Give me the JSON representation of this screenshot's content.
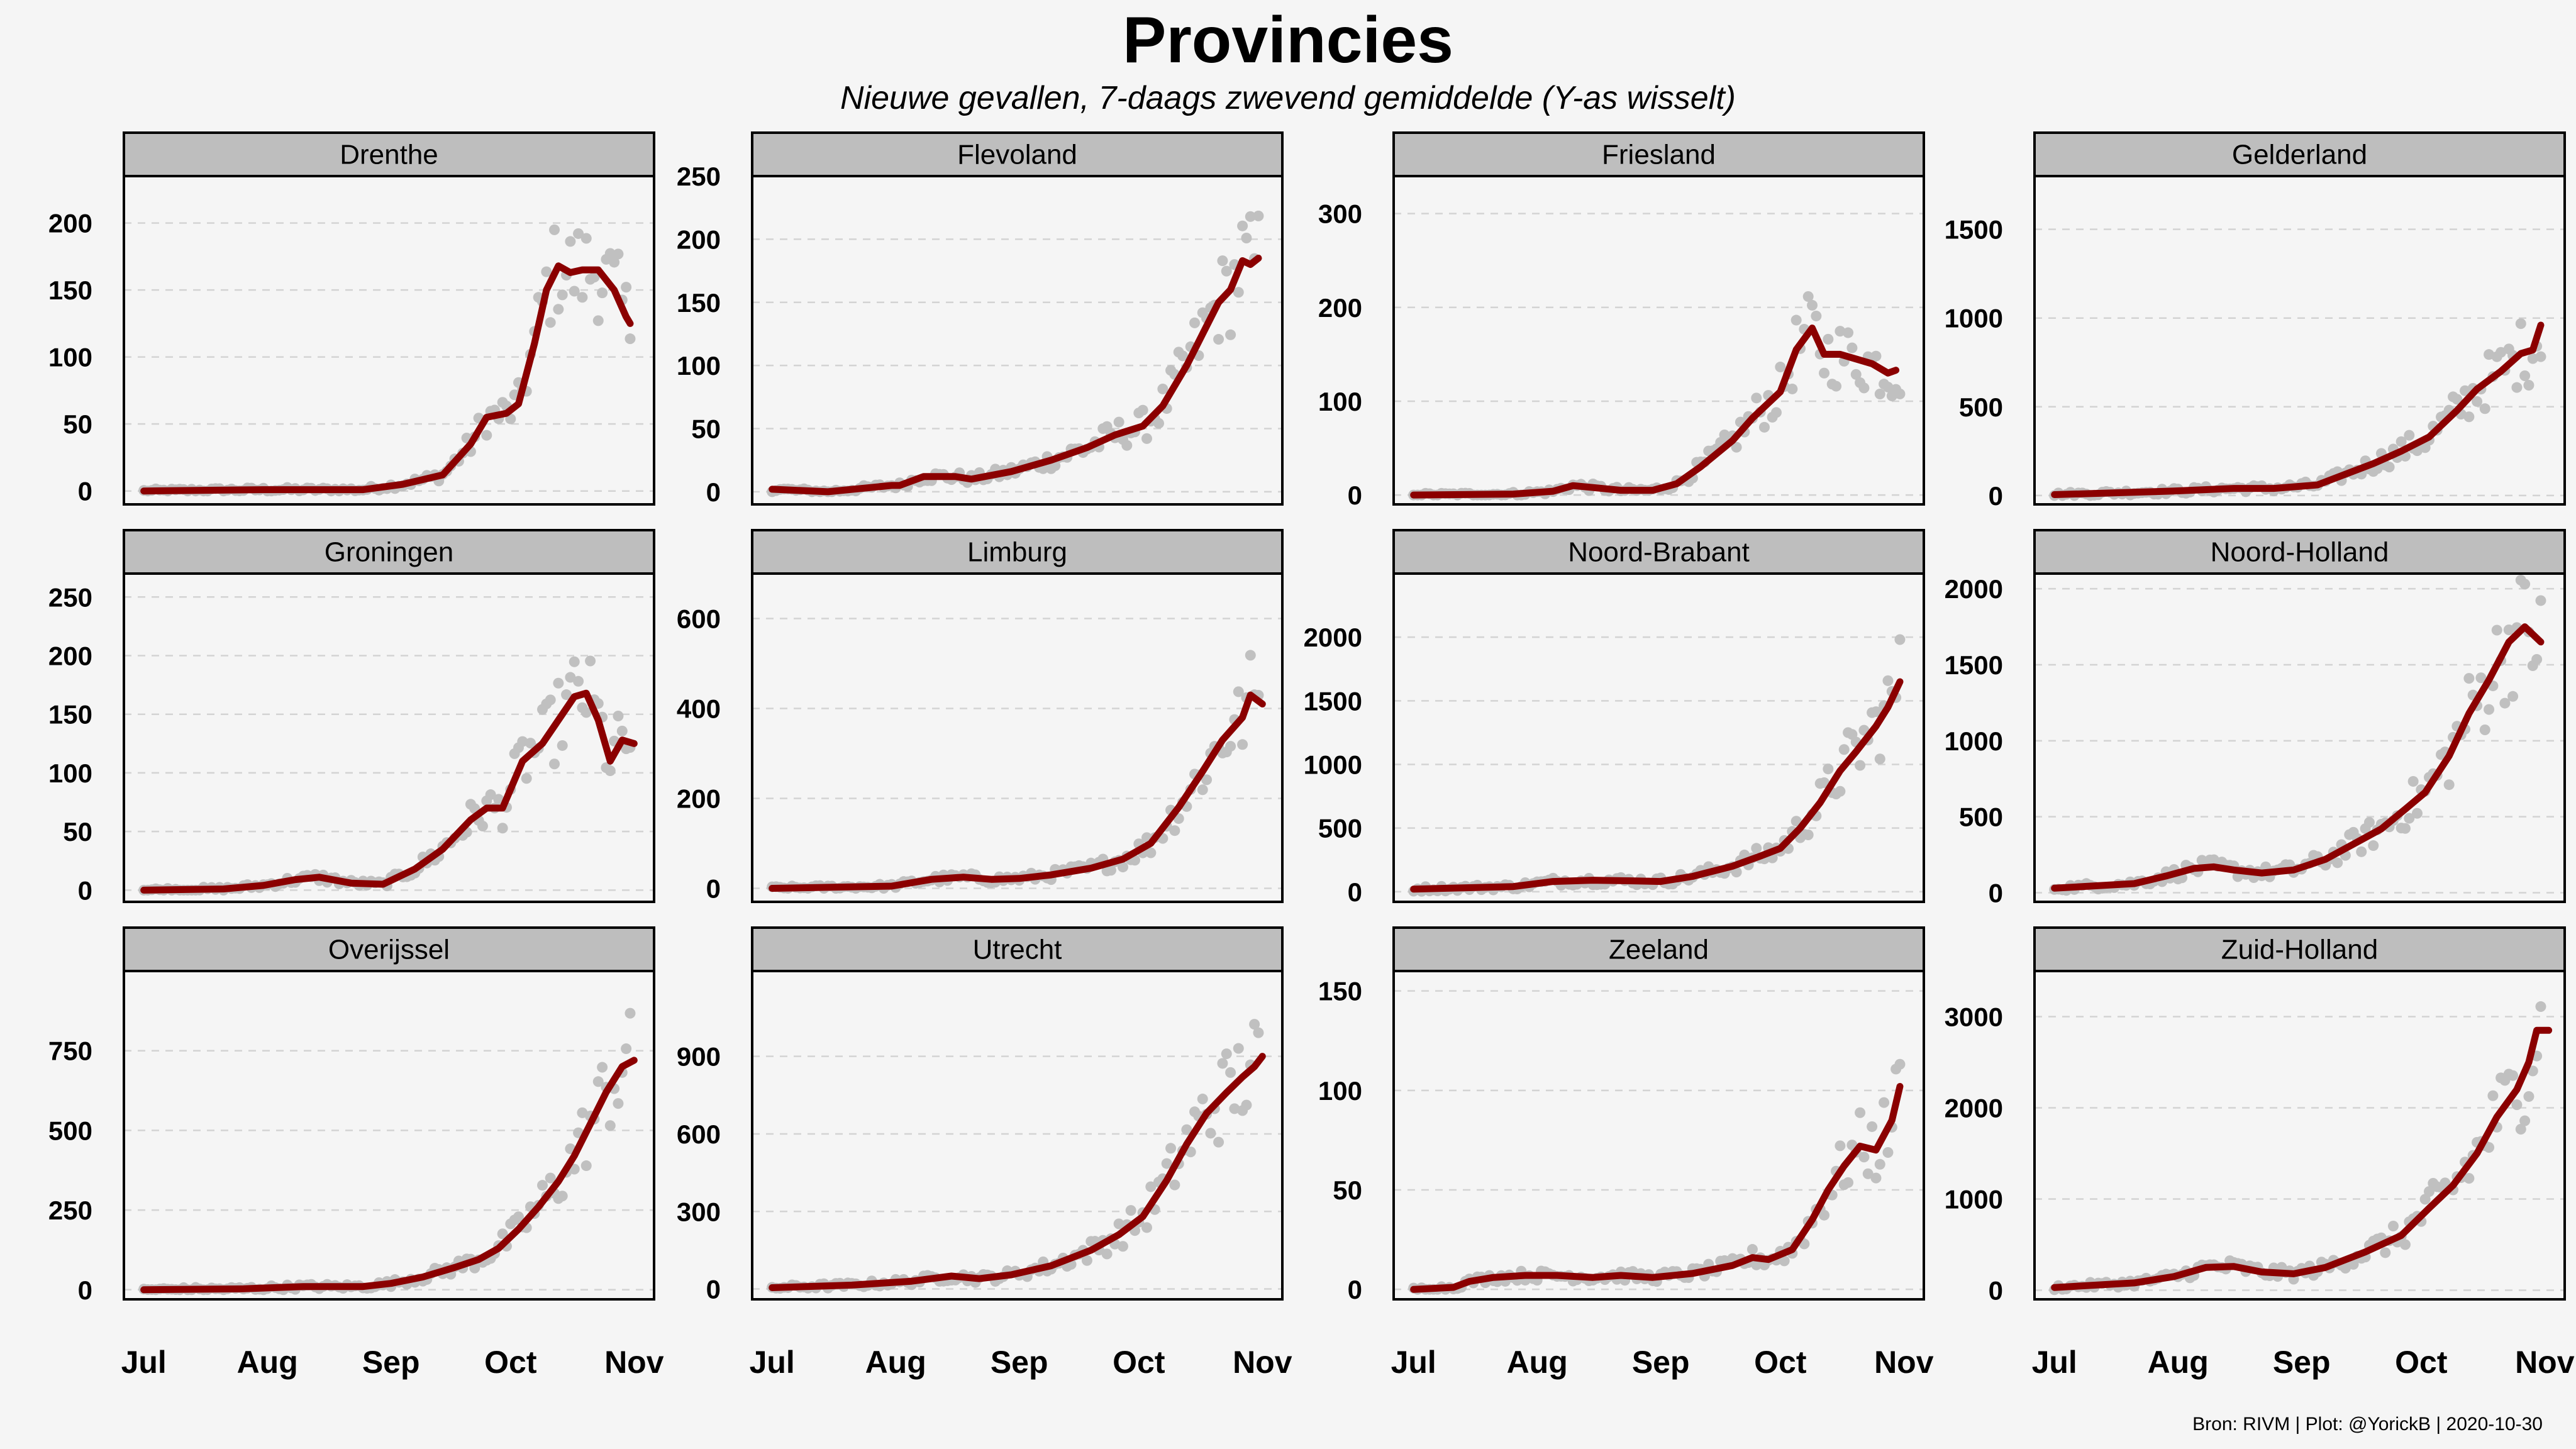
{
  "header": {
    "title": "Provincies",
    "subtitle": "Nieuwe gevallen, 7-daags zwevend gemiddelde  (Y-as wisselt)"
  },
  "caption": "Bron: RIVM | Plot: @YorickB |  2020-10-30",
  "colors": {
    "background": "#f5f5f5",
    "strip": "#bebebe",
    "line": "#8b0000",
    "points": "#c0c0c0",
    "grid": "#d3d3d3"
  },
  "chart_data": {
    "type": "line",
    "facet": "wrap",
    "columns": 4,
    "x_axis": {
      "unit": "day-of-year",
      "start": "2020-07-01",
      "end": "2020-10-30",
      "ticks": [
        {
          "label": "Jul",
          "day": 0
        },
        {
          "label": "Aug",
          "day": 31
        },
        {
          "label": "Sep",
          "day": 62
        },
        {
          "label": "Oct",
          "day": 92
        },
        {
          "label": "Nov",
          "day": 123
        }
      ],
      "range": [
        -5,
        128
      ]
    },
    "panels": [
      {
        "name": "Drenthe",
        "ylim": [
          -10,
          235
        ],
        "yticks": [
          0,
          50,
          100,
          150,
          200
        ],
        "line": [
          [
            0,
            0
          ],
          [
            30,
            1
          ],
          [
            55,
            1
          ],
          [
            65,
            5
          ],
          [
            75,
            12
          ],
          [
            82,
            35
          ],
          [
            86,
            55
          ],
          [
            91,
            58
          ],
          [
            94,
            65
          ],
          [
            98,
            110
          ],
          [
            101,
            150
          ],
          [
            104,
            168
          ],
          [
            107,
            163
          ],
          [
            110,
            165
          ],
          [
            114,
            165
          ],
          [
            118,
            150
          ],
          [
            121,
            130
          ],
          [
            122,
            125
          ]
        ]
      },
      {
        "name": "Flevoland",
        "ylim": [
          -10,
          250
        ],
        "yticks": [
          0,
          50,
          100,
          150,
          200,
          250
        ],
        "line": [
          [
            0,
            2
          ],
          [
            14,
            0
          ],
          [
            30,
            5
          ],
          [
            32,
            5
          ],
          [
            38,
            12
          ],
          [
            46,
            12
          ],
          [
            50,
            10
          ],
          [
            60,
            16
          ],
          [
            70,
            25
          ],
          [
            79,
            35
          ],
          [
            86,
            45
          ],
          [
            93,
            52
          ],
          [
            98,
            68
          ],
          [
            104,
            100
          ],
          [
            108,
            125
          ],
          [
            112,
            150
          ],
          [
            115,
            160
          ],
          [
            118,
            183
          ],
          [
            120,
            180
          ],
          [
            122,
            185
          ]
        ]
      },
      {
        "name": "Friesland",
        "ylim": [
          -10,
          340
        ],
        "yticks": [
          0,
          100,
          200,
          300
        ],
        "line": [
          [
            0,
            0
          ],
          [
            25,
            1
          ],
          [
            35,
            4
          ],
          [
            40,
            10
          ],
          [
            45,
            8
          ],
          [
            52,
            5
          ],
          [
            60,
            5
          ],
          [
            66,
            12
          ],
          [
            72,
            30
          ],
          [
            80,
            58
          ],
          [
            85,
            82
          ],
          [
            92,
            110
          ],
          [
            96,
            155
          ],
          [
            100,
            178
          ],
          [
            103,
            150
          ],
          [
            107,
            150
          ],
          [
            111,
            145
          ],
          [
            115,
            140
          ],
          [
            119,
            130
          ],
          [
            121,
            133
          ]
        ]
      },
      {
        "name": "Gelderland",
        "ylim": [
          -50,
          1800
        ],
        "yticks": [
          0,
          500,
          1000,
          1500
        ],
        "line": [
          [
            0,
            5
          ],
          [
            30,
            25
          ],
          [
            45,
            40
          ],
          [
            55,
            40
          ],
          [
            66,
            60
          ],
          [
            73,
            120
          ],
          [
            80,
            180
          ],
          [
            87,
            250
          ],
          [
            94,
            330
          ],
          [
            101,
            480
          ],
          [
            106,
            600
          ],
          [
            112,
            700
          ],
          [
            117,
            800
          ],
          [
            120,
            820
          ],
          [
            122,
            960
          ]
        ]
      },
      {
        "name": "Groningen",
        "ylim": [
          -10,
          270
        ],
        "yticks": [
          0,
          50,
          100,
          150,
          200,
          250
        ],
        "line": [
          [
            0,
            0
          ],
          [
            20,
            1
          ],
          [
            30,
            4
          ],
          [
            38,
            9
          ],
          [
            44,
            11
          ],
          [
            52,
            6
          ],
          [
            60,
            5
          ],
          [
            68,
            18
          ],
          [
            75,
            35
          ],
          [
            82,
            60
          ],
          [
            86,
            70
          ],
          [
            90,
            70
          ],
          [
            95,
            110
          ],
          [
            100,
            125
          ],
          [
            104,
            145
          ],
          [
            108,
            165
          ],
          [
            111,
            168
          ],
          [
            114,
            145
          ],
          [
            117,
            110
          ],
          [
            120,
            128
          ],
          [
            123,
            125
          ]
        ]
      },
      {
        "name": "Limburg",
        "ylim": [
          -30,
          700
        ],
        "yticks": [
          0,
          200,
          400,
          600
        ],
        "line": [
          [
            0,
            0
          ],
          [
            30,
            5
          ],
          [
            40,
            20
          ],
          [
            48,
            25
          ],
          [
            55,
            20
          ],
          [
            62,
            22
          ],
          [
            70,
            30
          ],
          [
            80,
            45
          ],
          [
            88,
            65
          ],
          [
            95,
            100
          ],
          [
            102,
            180
          ],
          [
            108,
            260
          ],
          [
            113,
            330
          ],
          [
            118,
            380
          ],
          [
            120,
            430
          ],
          [
            123,
            410
          ]
        ]
      },
      {
        "name": "Noord-Brabant",
        "ylim": [
          -80,
          2500
        ],
        "yticks": [
          0,
          500,
          1000,
          1500,
          2000
        ],
        "line": [
          [
            0,
            20
          ],
          [
            25,
            40
          ],
          [
            35,
            80
          ],
          [
            45,
            90
          ],
          [
            55,
            85
          ],
          [
            62,
            80
          ],
          [
            70,
            120
          ],
          [
            80,
            200
          ],
          [
            87,
            280
          ],
          [
            92,
            340
          ],
          [
            97,
            500
          ],
          [
            102,
            700
          ],
          [
            107,
            950
          ],
          [
            111,
            1100
          ],
          [
            116,
            1300
          ],
          [
            119,
            1450
          ],
          [
            122,
            1650
          ]
        ]
      },
      {
        "name": "Noord-Holland",
        "ylim": [
          -60,
          2100
        ],
        "yticks": [
          0,
          500,
          1000,
          1500,
          2000
        ],
        "line": [
          [
            0,
            30
          ],
          [
            20,
            60
          ],
          [
            28,
            110
          ],
          [
            35,
            160
          ],
          [
            40,
            170
          ],
          [
            45,
            150
          ],
          [
            52,
            130
          ],
          [
            60,
            150
          ],
          [
            68,
            220
          ],
          [
            75,
            320
          ],
          [
            82,
            420
          ],
          [
            88,
            550
          ],
          [
            93,
            660
          ],
          [
            99,
            900
          ],
          [
            104,
            1180
          ],
          [
            109,
            1400
          ],
          [
            114,
            1650
          ],
          [
            118,
            1750
          ],
          [
            120,
            1700
          ],
          [
            122,
            1650
          ]
        ]
      },
      {
        "name": "Overijssel",
        "ylim": [
          -30,
          1000
        ],
        "yticks": [
          0,
          250,
          500,
          750
        ],
        "line": [
          [
            0,
            0
          ],
          [
            25,
            3
          ],
          [
            40,
            10
          ],
          [
            55,
            10
          ],
          [
            62,
            20
          ],
          [
            70,
            40
          ],
          [
            78,
            70
          ],
          [
            84,
            95
          ],
          [
            89,
            130
          ],
          [
            94,
            190
          ],
          [
            99,
            260
          ],
          [
            104,
            340
          ],
          [
            108,
            420
          ],
          [
            112,
            520
          ],
          [
            116,
            620
          ],
          [
            120,
            700
          ],
          [
            123,
            720
          ]
        ]
      },
      {
        "name": "Utrecht",
        "ylim": [
          -40,
          1230
        ],
        "yticks": [
          0,
          300,
          600,
          900
        ],
        "line": [
          [
            0,
            5
          ],
          [
            20,
            15
          ],
          [
            35,
            30
          ],
          [
            45,
            50
          ],
          [
            52,
            40
          ],
          [
            60,
            55
          ],
          [
            70,
            90
          ],
          [
            80,
            150
          ],
          [
            87,
            210
          ],
          [
            93,
            280
          ],
          [
            99,
            420
          ],
          [
            104,
            560
          ],
          [
            109,
            680
          ],
          [
            114,
            760
          ],
          [
            118,
            820
          ],
          [
            121,
            860
          ],
          [
            123,
            900
          ]
        ]
      },
      {
        "name": "Zeeland",
        "ylim": [
          -5,
          160
        ],
        "yticks": [
          0,
          50,
          100,
          150
        ],
        "line": [
          [
            0,
            0
          ],
          [
            10,
            1
          ],
          [
            14,
            4
          ],
          [
            20,
            6
          ],
          [
            28,
            7
          ],
          [
            36,
            7
          ],
          [
            45,
            6
          ],
          [
            52,
            7
          ],
          [
            60,
            6
          ],
          [
            70,
            8
          ],
          [
            80,
            12
          ],
          [
            85,
            16
          ],
          [
            89,
            15
          ],
          [
            95,
            20
          ],
          [
            100,
            35
          ],
          [
            104,
            50
          ],
          [
            108,
            62
          ],
          [
            112,
            72
          ],
          [
            116,
            70
          ],
          [
            120,
            85
          ],
          [
            122,
            102
          ]
        ]
      },
      {
        "name": "Zuid-Holland",
        "ylim": [
          -100,
          3500
        ],
        "yticks": [
          0,
          1000,
          2000,
          3000
        ],
        "line": [
          [
            0,
            30
          ],
          [
            20,
            80
          ],
          [
            30,
            150
          ],
          [
            38,
            250
          ],
          [
            45,
            260
          ],
          [
            52,
            200
          ],
          [
            60,
            180
          ],
          [
            68,
            250
          ],
          [
            78,
            420
          ],
          [
            87,
            600
          ],
          [
            94,
            900
          ],
          [
            100,
            1150
          ],
          [
            106,
            1500
          ],
          [
            111,
            1900
          ],
          [
            116,
            2200
          ],
          [
            119,
            2500
          ],
          [
            121,
            2850
          ],
          [
            124,
            2850
          ]
        ]
      }
    ]
  }
}
